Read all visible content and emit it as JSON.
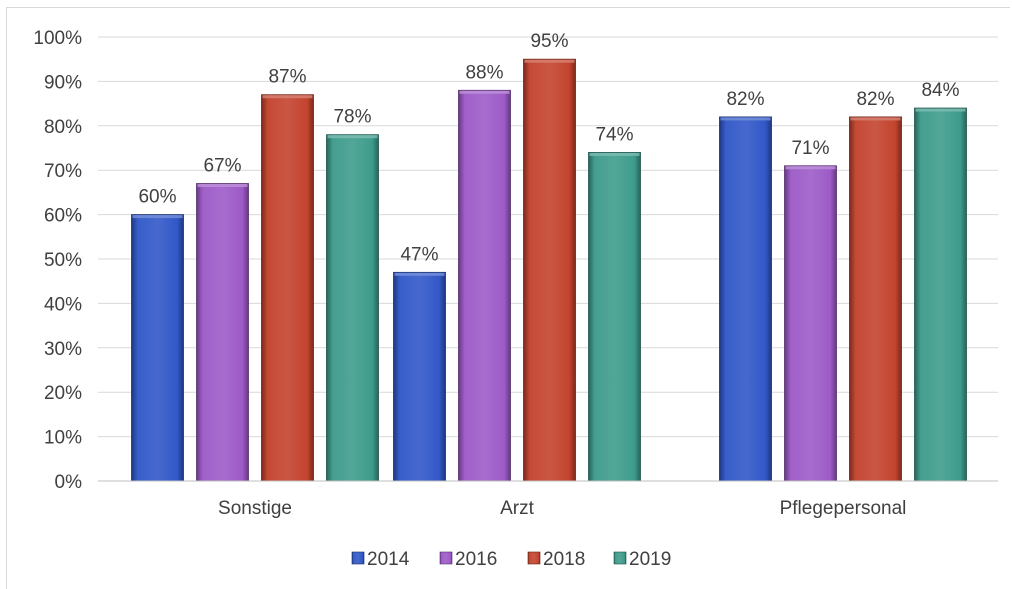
{
  "chart_data": {
    "type": "bar",
    "title": "",
    "xlabel": "",
    "ylabel": "",
    "ylim": [
      0,
      100
    ],
    "yticks": [
      0,
      10,
      20,
      30,
      40,
      50,
      60,
      70,
      80,
      90,
      100
    ],
    "ytick_suffix": "%",
    "categories": [
      "Sonstige",
      "Arzt",
      "Pflegepersonal"
    ],
    "series": [
      {
        "name": "2014",
        "color": "#2e55c7",
        "values": [
          60,
          47,
          82
        ]
      },
      {
        "name": "2016",
        "color": "#9b58c6",
        "values": [
          67,
          88,
          71
        ]
      },
      {
        "name": "2018",
        "color": "#c2402a",
        "values": [
          87,
          95,
          82
        ]
      },
      {
        "name": "2019",
        "color": "#3a9a8a",
        "values": [
          78,
          74,
          84
        ]
      }
    ],
    "data_labels": [
      [
        "60%",
        "47%",
        "82%"
      ],
      [
        "67%",
        "88%",
        "71%"
      ],
      [
        "87%",
        "95%",
        "82%"
      ],
      [
        "78%",
        "74%",
        "84%"
      ]
    ],
    "grid": true,
    "legend_position": "bottom"
  }
}
